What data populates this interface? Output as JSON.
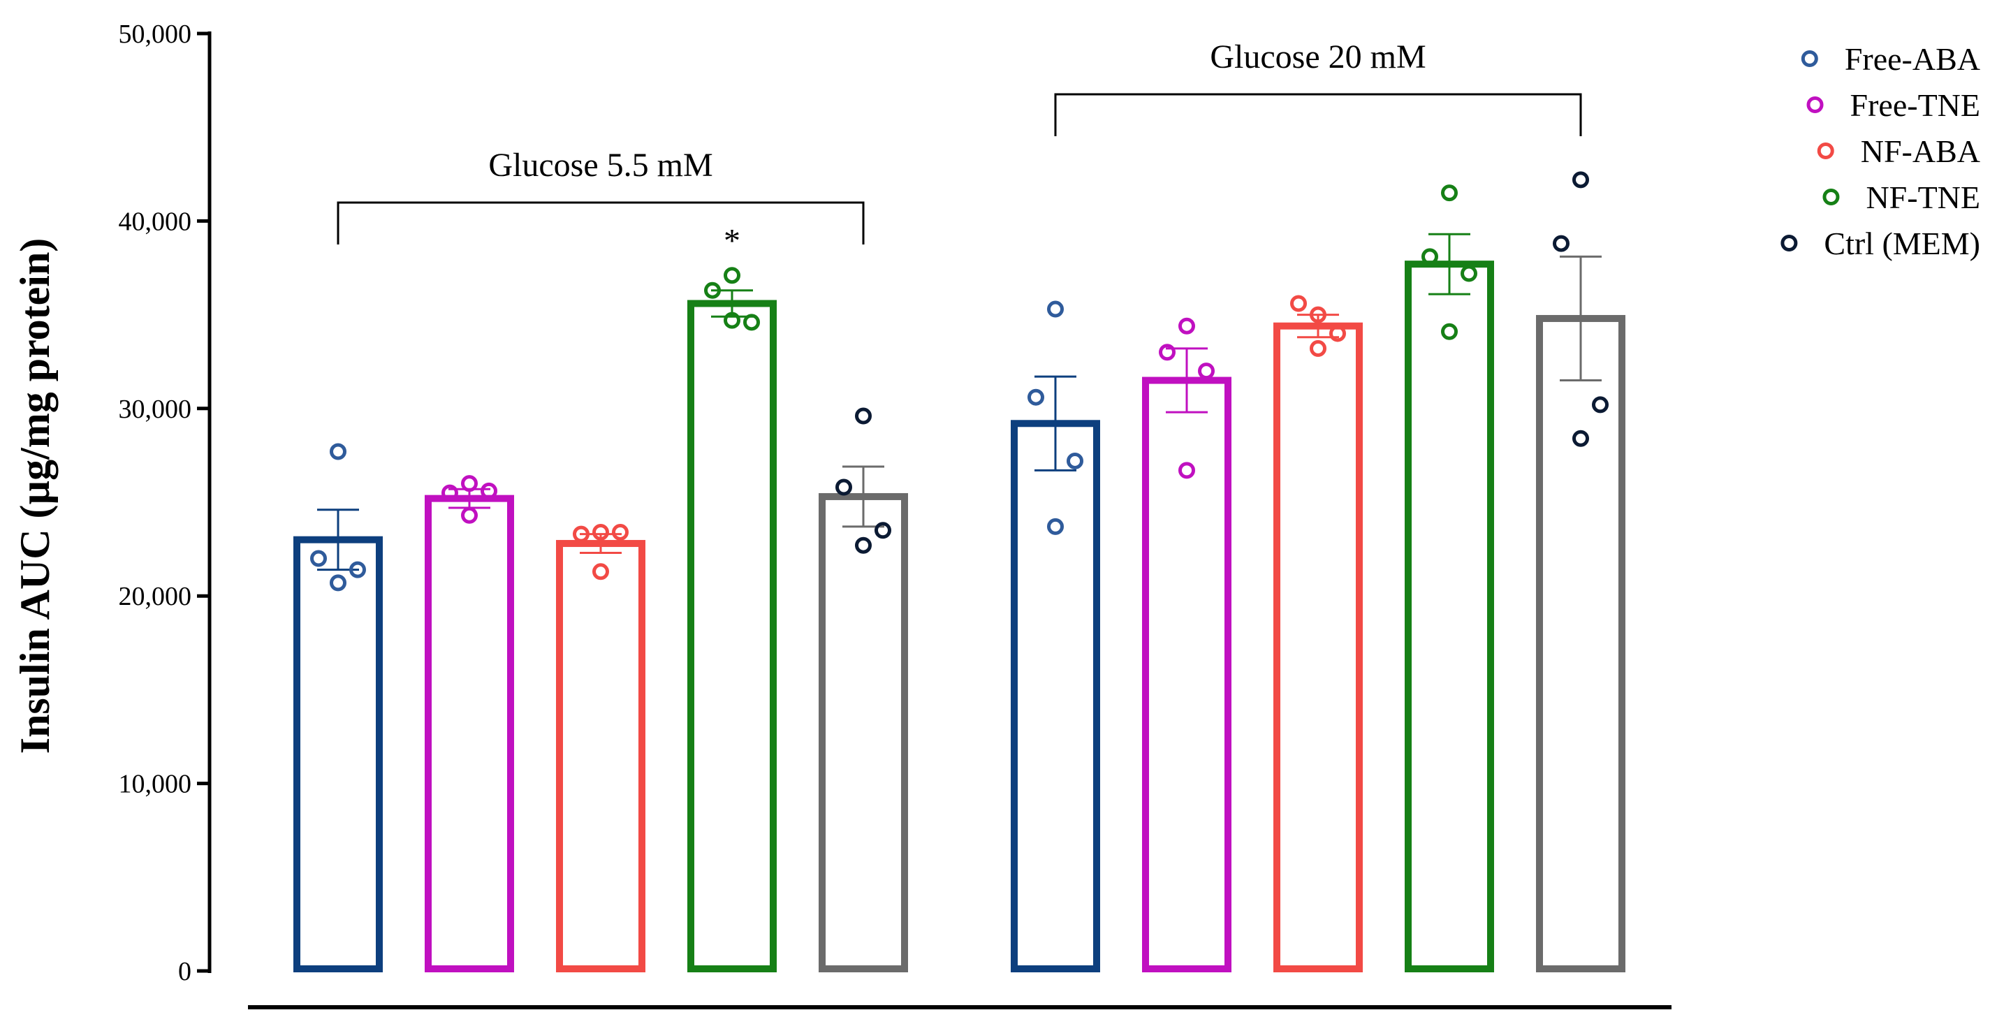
{
  "chart_data": {
    "type": "bar",
    "title": "",
    "xlabel": "",
    "ylabel": "Insulin AUC (µg/mg protein)",
    "ylim": [
      0,
      50000
    ],
    "yticks": [
      0,
      10000,
      20000,
      30000,
      40000,
      50000
    ],
    "ytick_labels": [
      "0",
      "10,000",
      "20,000",
      "30,000",
      "40,000",
      "50,000"
    ],
    "grid": false,
    "legend_position": "top-right",
    "colors": {
      "Free-ABA": "#0d3f7e",
      "Free-TNE": "#c010c0",
      "NF-ABA": "#f24a45",
      "NF-TNE": "#168016",
      "Ctrl (MEM)": "#6b6b6b"
    },
    "point_colors": {
      "Free-ABA": "#2f5b9b",
      "Free-TNE": "#c010c0",
      "NF-ABA": "#f24a45",
      "NF-TNE": "#168016",
      "Ctrl (MEM)": "#0b1a33"
    },
    "legend": [
      {
        "name": "Free-ABA",
        "color": "#2f5b9b"
      },
      {
        "name": "Free-TNE",
        "color": "#c010c0"
      },
      {
        "name": "NF-ABA",
        "color": "#f24a45"
      },
      {
        "name": "NF-TNE",
        "color": "#168016"
      },
      {
        "name": "Ctrl (MEM)",
        "color": "#0b1a33"
      }
    ],
    "groups": [
      {
        "label": "Glucose 5.5 mM",
        "bars": [
          {
            "series": "Free-ABA",
            "mean": 23000,
            "sem": 1600,
            "points": [
              27700,
              22000,
              21400,
              20700
            ]
          },
          {
            "series": "Free-TNE",
            "mean": 25200,
            "sem": 500,
            "points": [
              26000,
              25500,
              25600,
              24300
            ]
          },
          {
            "series": "NF-ABA",
            "mean": 22800,
            "sem": 500,
            "points": [
              23400,
              23300,
              23400,
              21300
            ]
          },
          {
            "series": "NF-TNE",
            "mean": 35600,
            "sem": 700,
            "points": [
              37100,
              36300,
              34600,
              34700
            ],
            "annotation": "*"
          },
          {
            "series": "Ctrl (MEM)",
            "mean": 25300,
            "sem": 1600,
            "points": [
              29600,
              25800,
              23500,
              22700
            ]
          }
        ]
      },
      {
        "label": "Glucose 20 mM",
        "bars": [
          {
            "series": "Free-ABA",
            "mean": 29200,
            "sem": 2500,
            "points": [
              35300,
              30600,
              27200,
              23700
            ]
          },
          {
            "series": "Free-TNE",
            "mean": 31500,
            "sem": 1700,
            "points": [
              34400,
              33000,
              32000,
              26700
            ]
          },
          {
            "series": "NF-ABA",
            "mean": 34400,
            "sem": 600,
            "points": [
              35000,
              35600,
              34000,
              33200
            ]
          },
          {
            "series": "NF-TNE",
            "mean": 37700,
            "sem": 1600,
            "points": [
              41500,
              38100,
              37200,
              34100
            ]
          },
          {
            "series": "Ctrl (MEM)",
            "mean": 34800,
            "sem": 3300,
            "points": [
              42200,
              38800,
              30200,
              28400
            ]
          }
        ]
      }
    ]
  }
}
